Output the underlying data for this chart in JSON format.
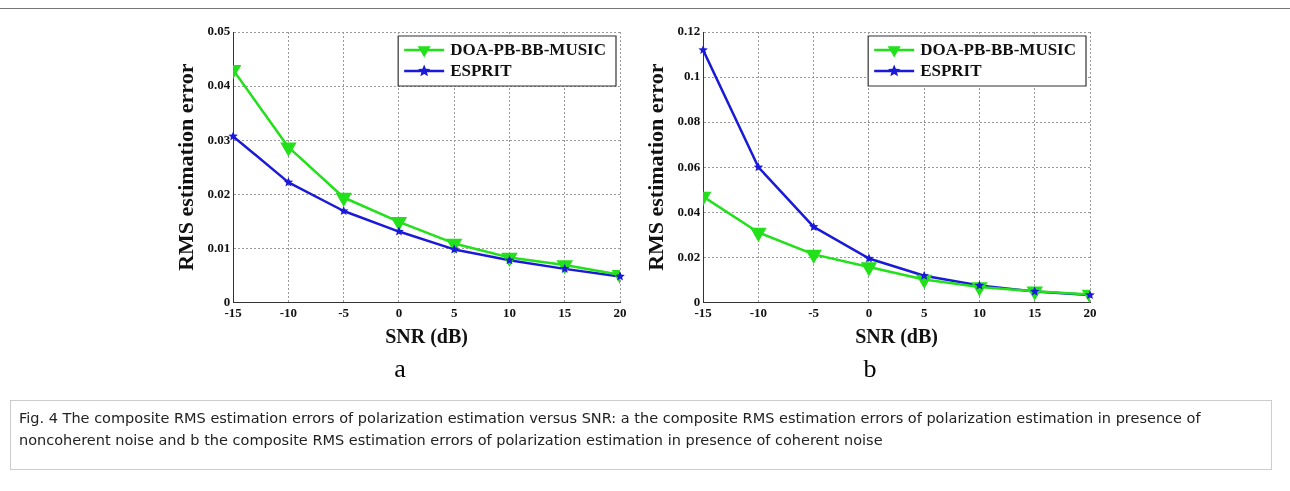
{
  "chart_data": [
    {
      "type": "line",
      "subtitle": "a",
      "xlabel": "SNR (dB)",
      "ylabel": "RMS estimation error",
      "x": [
        -15,
        -10,
        -5,
        0,
        5,
        10,
        15,
        20
      ],
      "xlim": [
        -15,
        20
      ],
      "xticks": [
        -15,
        -10,
        -5,
        0,
        5,
        10,
        15,
        20
      ],
      "ylim": [
        0,
        0.05
      ],
      "yticks": [
        0,
        0.01,
        0.02,
        0.03,
        0.04,
        0.05
      ],
      "grid": true,
      "legend": "top right",
      "line_style": "solid",
      "series": [
        {
          "name": "DOA-PB-BB-MUSIC",
          "color": "#22e01a",
          "marker": "triangle",
          "values": [
            0.043,
            0.0287,
            0.0194,
            0.0149,
            0.0109,
            0.0083,
            0.0069,
            0.0051
          ]
        },
        {
          "name": "ESPRIT",
          "color": "#1a1ad8",
          "marker": "star",
          "values": [
            0.0307,
            0.0222,
            0.0169,
            0.0131,
            0.0098,
            0.0078,
            0.0062,
            0.0048
          ]
        }
      ],
      "annotations": [
        "Fig. 4 The composite RMS estimation errors of polarization estimation versus SNR: a the composite RMS estimation errors of polarization estimation in presence of noncoherent noise and b the composite RMS estimation errors of polarization estimation in presence of coherent noise"
      ]
    },
    {
      "type": "line",
      "subtitle": "b",
      "xlabel": "SNR (dB)",
      "ylabel": "RMS estimation error",
      "x": [
        -15,
        -10,
        -5,
        0,
        5,
        10,
        15,
        20
      ],
      "xlim": [
        -15,
        20
      ],
      "xticks": [
        -15,
        -10,
        -5,
        0,
        5,
        10,
        15,
        20
      ],
      "ylim": [
        0,
        0.12
      ],
      "yticks": [
        0,
        0.02,
        0.04,
        0.06,
        0.08,
        0.1,
        0.12
      ],
      "grid": true,
      "legend": "top right",
      "line_style": "solid",
      "series": [
        {
          "name": "DOA-PB-BB-MUSIC",
          "color": "#22e01a",
          "marker": "triangle",
          "values": [
            0.047,
            0.031,
            0.0213,
            0.0157,
            0.0102,
            0.0068,
            0.005,
            0.0035
          ]
        },
        {
          "name": "ESPRIT",
          "color": "#1a1ad8",
          "marker": "star",
          "values": [
            0.112,
            0.06,
            0.0335,
            0.0195,
            0.0118,
            0.0075,
            0.0048,
            0.0033
          ]
        }
      ]
    }
  ]
}
